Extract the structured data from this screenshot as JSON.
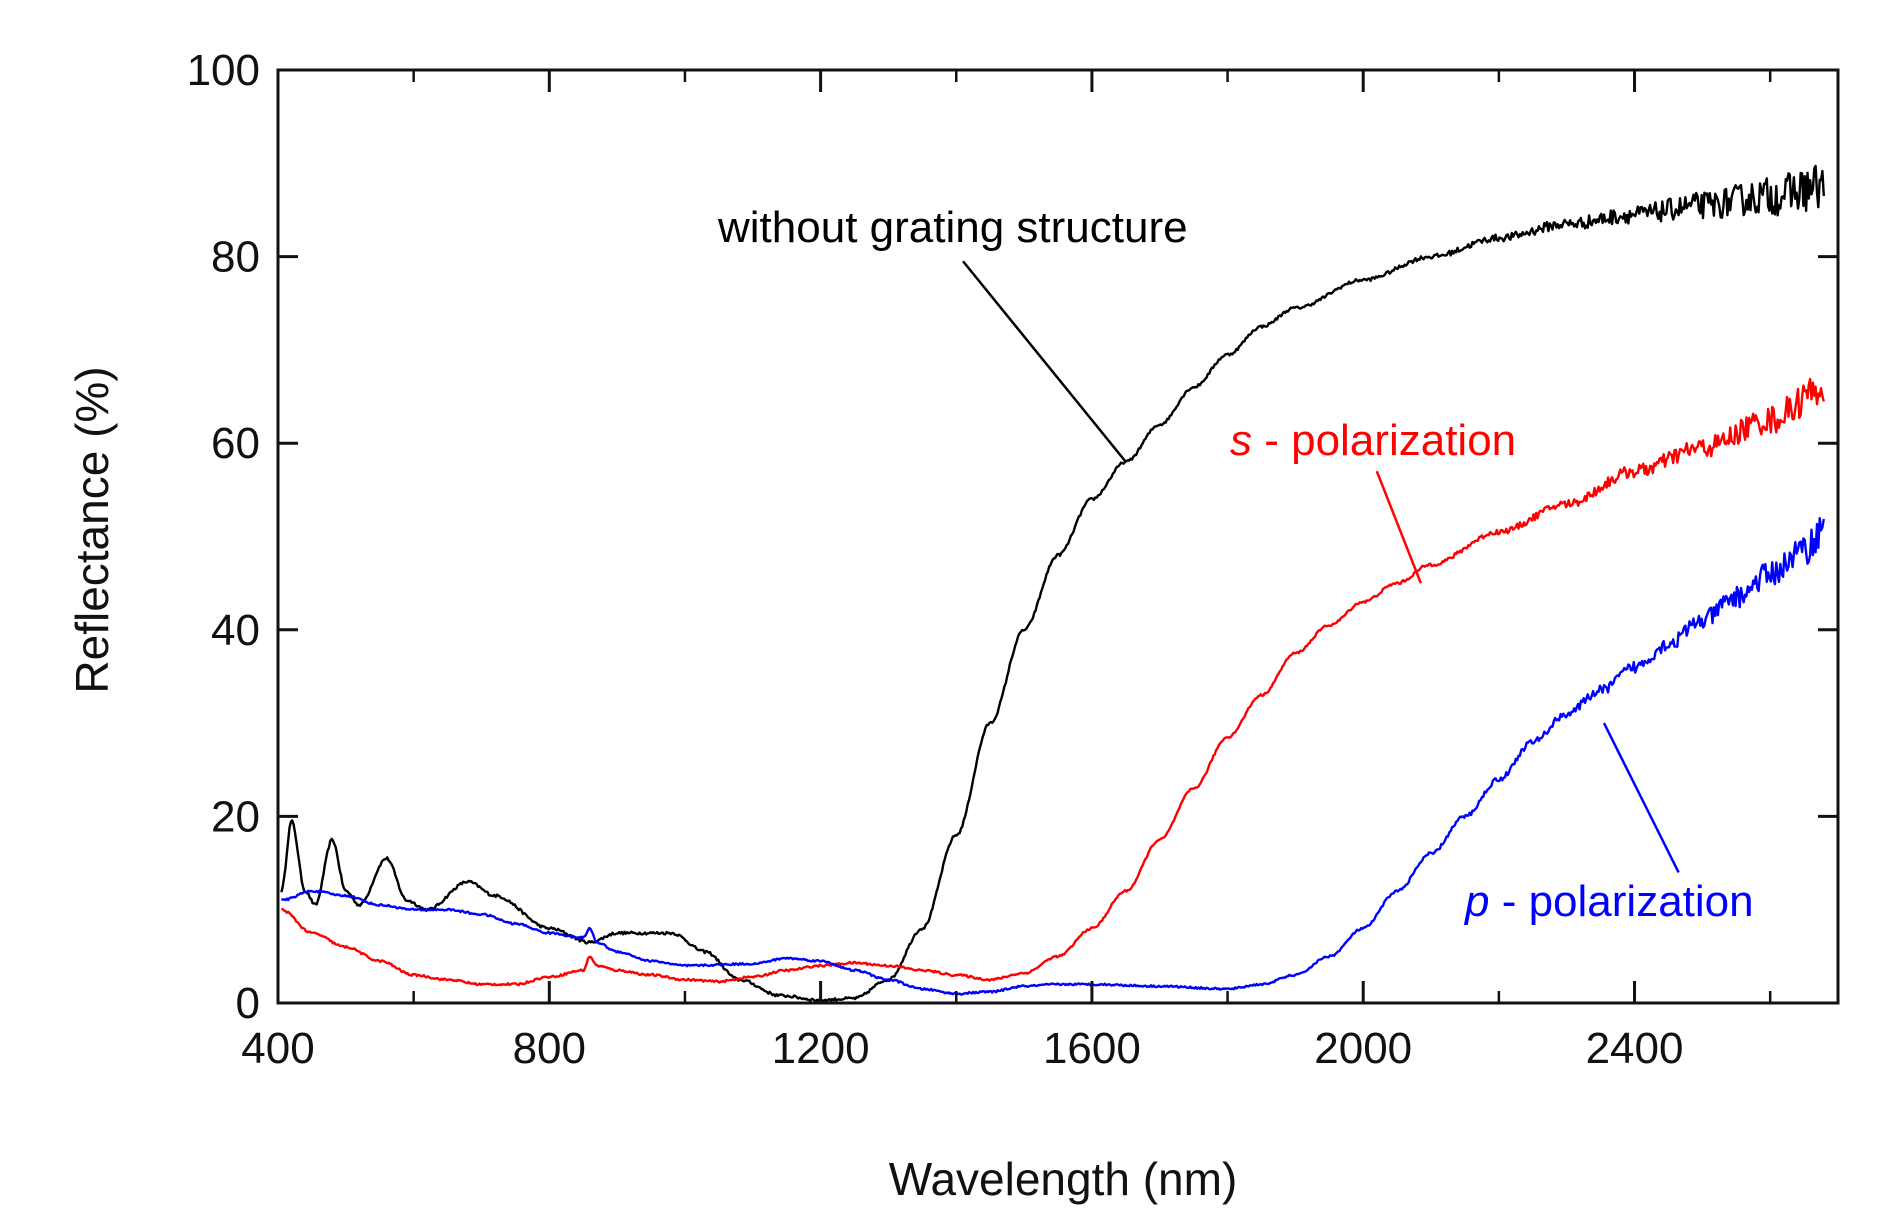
{
  "chart_data": {
    "type": "line",
    "title": "",
    "xlabel": "Wavelength (nm)",
    "ylabel": "Reflectance (%)",
    "xlim": [
      400,
      2700
    ],
    "ylim": [
      0,
      100
    ],
    "xticks": [
      400,
      800,
      1200,
      1600,
      2000,
      2400
    ],
    "yticks": [
      0,
      20,
      40,
      60,
      80,
      100
    ],
    "minor_xtick_step": 200,
    "grid": false,
    "series": [
      {
        "name": "without grating structure",
        "color": "#000000",
        "noise": 1.2,
        "points": [
          [
            405,
            12
          ],
          [
            420,
            19.5
          ],
          [
            440,
            12
          ],
          [
            455,
            10.5
          ],
          [
            480,
            17.5
          ],
          [
            500,
            12
          ],
          [
            520,
            10.5
          ],
          [
            560,
            15.5
          ],
          [
            590,
            11
          ],
          [
            620,
            10
          ],
          [
            680,
            13
          ],
          [
            720,
            11.5
          ],
          [
            800,
            8
          ],
          [
            860,
            6.5
          ],
          [
            900,
            7.5
          ],
          [
            980,
            7.5
          ],
          [
            1030,
            5.5
          ],
          [
            1080,
            2.5
          ],
          [
            1140,
            0.8
          ],
          [
            1200,
            0.3
          ],
          [
            1250,
            0.5
          ],
          [
            1300,
            2.5
          ],
          [
            1350,
            8
          ],
          [
            1400,
            18
          ],
          [
            1450,
            30
          ],
          [
            1500,
            40
          ],
          [
            1550,
            48
          ],
          [
            1600,
            54
          ],
          [
            1650,
            58
          ],
          [
            1700,
            62
          ],
          [
            1750,
            66
          ],
          [
            1800,
            69.5
          ],
          [
            1850,
            72.5
          ],
          [
            1900,
            74.5
          ],
          [
            2000,
            77.5
          ],
          [
            2100,
            80
          ],
          [
            2200,
            82
          ],
          [
            2300,
            83.5
          ],
          [
            2400,
            84.5
          ],
          [
            2500,
            85.5
          ],
          [
            2600,
            86.5
          ],
          [
            2680,
            87.5
          ]
        ]
      },
      {
        "name": "s - polarization",
        "label_italic": "s",
        "label_rest": " - polarization",
        "color": "#ff0000",
        "noise": 0.9,
        "points": [
          [
            405,
            10
          ],
          [
            450,
            7.5
          ],
          [
            500,
            6
          ],
          [
            550,
            4.5
          ],
          [
            600,
            3
          ],
          [
            650,
            2.5
          ],
          [
            700,
            2
          ],
          [
            750,
            2
          ],
          [
            800,
            2.8
          ],
          [
            850,
            3.5
          ],
          [
            860,
            5
          ],
          [
            870,
            4
          ],
          [
            900,
            3.5
          ],
          [
            950,
            3
          ],
          [
            1000,
            2.5
          ],
          [
            1050,
            2.3
          ],
          [
            1100,
            2.8
          ],
          [
            1150,
            3.5
          ],
          [
            1200,
            4
          ],
          [
            1250,
            4.3
          ],
          [
            1300,
            4
          ],
          [
            1350,
            3.5
          ],
          [
            1400,
            3
          ],
          [
            1450,
            2.5
          ],
          [
            1500,
            3.2
          ],
          [
            1550,
            5
          ],
          [
            1600,
            8
          ],
          [
            1650,
            12
          ],
          [
            1700,
            17.5
          ],
          [
            1750,
            23
          ],
          [
            1800,
            28.5
          ],
          [
            1850,
            33
          ],
          [
            1900,
            37.5
          ],
          [
            1950,
            40.5
          ],
          [
            2000,
            43
          ],
          [
            2050,
            45
          ],
          [
            2100,
            47
          ],
          [
            2200,
            50.5
          ],
          [
            2300,
            53.5
          ],
          [
            2400,
            57
          ],
          [
            2500,
            59.5
          ],
          [
            2600,
            62.5
          ],
          [
            2680,
            66
          ]
        ]
      },
      {
        "name": "p - polarization",
        "label_italic": "p",
        "label_rest": " - polarization",
        "color": "#0000ff",
        "noise": 0.8,
        "points": [
          [
            405,
            11
          ],
          [
            450,
            12
          ],
          [
            500,
            11.5
          ],
          [
            550,
            10.5
          ],
          [
            600,
            10
          ],
          [
            650,
            10
          ],
          [
            700,
            9.5
          ],
          [
            750,
            8.5
          ],
          [
            800,
            7.5
          ],
          [
            850,
            7
          ],
          [
            860,
            8
          ],
          [
            870,
            6.5
          ],
          [
            900,
            5.5
          ],
          [
            950,
            4.5
          ],
          [
            1000,
            4
          ],
          [
            1100,
            4.2
          ],
          [
            1150,
            4.8
          ],
          [
            1200,
            4.5
          ],
          [
            1250,
            3.5
          ],
          [
            1300,
            2.5
          ],
          [
            1350,
            1.5
          ],
          [
            1400,
            1
          ],
          [
            1450,
            1.2
          ],
          [
            1500,
            1.8
          ],
          [
            1550,
            2
          ],
          [
            1600,
            2
          ],
          [
            1700,
            1.8
          ],
          [
            1800,
            1.5
          ],
          [
            1850,
            2
          ],
          [
            1900,
            3
          ],
          [
            1950,
            5
          ],
          [
            2000,
            8
          ],
          [
            2050,
            12
          ],
          [
            2100,
            16
          ],
          [
            2150,
            20
          ],
          [
            2200,
            24
          ],
          [
            2250,
            28
          ],
          [
            2300,
            31
          ],
          [
            2350,
            33.5
          ],
          [
            2400,
            36
          ],
          [
            2450,
            38.5
          ],
          [
            2500,
            41
          ],
          [
            2550,
            43.5
          ],
          [
            2600,
            46
          ],
          [
            2650,
            48.5
          ],
          [
            2680,
            51
          ]
        ]
      }
    ],
    "annotations": [
      {
        "text": "without grating structure",
        "color": "#000000",
        "leader_from": [
          1410,
          79.5
        ],
        "leader_to": [
          1650,
          58
        ]
      },
      {
        "text": "s - polarization",
        "italic": "s",
        "rest": " - polarization",
        "color": "#ff0000",
        "leader_from": [
          2020,
          57
        ],
        "leader_to": [
          2085,
          45
        ]
      },
      {
        "text": "p - polarization",
        "italic": "p",
        "rest": " - polarization",
        "color": "#0000ff",
        "leader_from": [
          2465,
          14
        ],
        "leader_to": [
          2355,
          30
        ]
      }
    ]
  }
}
